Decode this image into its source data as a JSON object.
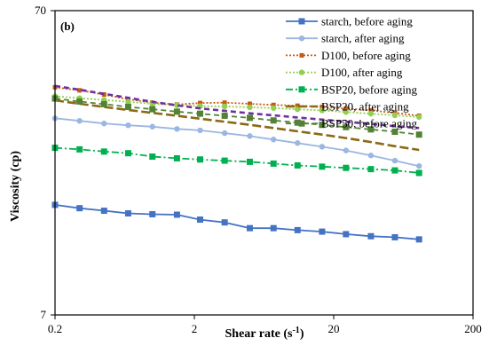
{
  "chart_data": {
    "type": "line",
    "panel_label": "(b)",
    "xlabel": "Shear rate (s⁻¹)",
    "ylabel": "Viscosity (cp)",
    "xscale": "log",
    "yscale": "log",
    "xlim": [
      0.2,
      200
    ],
    "ylim": [
      7,
      70
    ],
    "xticks": [
      {
        "value": 0.2,
        "label": "0.2"
      },
      {
        "value": 2,
        "label": "2"
      },
      {
        "value": 20,
        "label": "20"
      },
      {
        "value": 200,
        "label": "200"
      }
    ],
    "yticks": [
      {
        "value": 7,
        "label": "7"
      },
      {
        "value": 70,
        "label": "70"
      }
    ],
    "grid": false,
    "legend_position": "top-right",
    "x": [
      0.2,
      0.3,
      0.45,
      0.67,
      1.0,
      1.5,
      2.2,
      3.3,
      5.0,
      7.4,
      11.0,
      16.5,
      24.5,
      37.0,
      55.0,
      82.0
    ],
    "series": [
      {
        "name": "starch, before aging",
        "color": "#4472c4",
        "marker": "square",
        "dash": "solid",
        "values": [
          16.1,
          15.7,
          15.4,
          15.1,
          15.0,
          14.95,
          14.4,
          14.1,
          13.5,
          13.5,
          13.3,
          13.15,
          12.9,
          12.7,
          12.6,
          12.4
        ]
      },
      {
        "name": "starch, after aging",
        "color": "#9bb6e2",
        "marker": "circle",
        "dash": "solid",
        "values": [
          31.0,
          30.4,
          29.8,
          29.4,
          29.1,
          28.6,
          28.3,
          27.7,
          27.1,
          26.4,
          25.7,
          25.0,
          24.3,
          23.4,
          22.5,
          21.6
        ]
      },
      {
        "name": "D100, before aging",
        "color": "#c55a11",
        "marker": "small-square",
        "dash": "dot",
        "values": [
          39.2,
          38.3,
          37.1,
          35.8,
          34.9,
          34.4,
          34.8,
          34.9,
          34.6,
          34.3,
          34.1,
          33.8,
          33.4,
          32.9,
          32.3,
          31.6
        ]
      },
      {
        "name": "D100, after aging",
        "color": "#92d050",
        "marker": "circle",
        "dash": "dot",
        "values": [
          36.6,
          36.1,
          35.6,
          35.1,
          34.6,
          34.2,
          34.0,
          33.9,
          33.7,
          33.5,
          33.2,
          32.9,
          32.5,
          32.1,
          31.7,
          31.3
        ]
      },
      {
        "name": "BSP20, before aging",
        "color": "#00b050",
        "marker": "square",
        "dash": "dashdot",
        "values": [
          24.8,
          24.5,
          24.1,
          23.8,
          23.2,
          22.9,
          22.7,
          22.5,
          22.3,
          22.0,
          21.7,
          21.5,
          21.3,
          21.1,
          20.9,
          20.5
        ]
      },
      {
        "name": "BSP20, after aging",
        "color": "#8b6914",
        "marker": "none",
        "dash": "longdash",
        "values": [
          35.5,
          34.6,
          33.8,
          33.0,
          32.3,
          31.6,
          30.9,
          30.2,
          29.5,
          28.8,
          28.1,
          27.4,
          26.7,
          25.9,
          25.1,
          24.4
        ]
      },
      {
        "name": "BSP50, before aging",
        "color": "#548235",
        "marker": "square",
        "dash": "dash",
        "values": [
          36.0,
          35.2,
          34.5,
          33.8,
          33.2,
          32.6,
          32.1,
          31.6,
          31.1,
          30.5,
          30.0,
          29.5,
          29.0,
          28.5,
          28.0,
          27.4
        ]
      },
      {
        "name": "",
        "color": "#7030a0",
        "marker": "none",
        "dash": "dash",
        "values": [
          39.6,
          38.5,
          37.3,
          36.2,
          35.1,
          34.2,
          33.4,
          32.8,
          32.2,
          31.7,
          31.2,
          30.7,
          30.2,
          29.7,
          29.2,
          28.8
        ]
      }
    ]
  }
}
